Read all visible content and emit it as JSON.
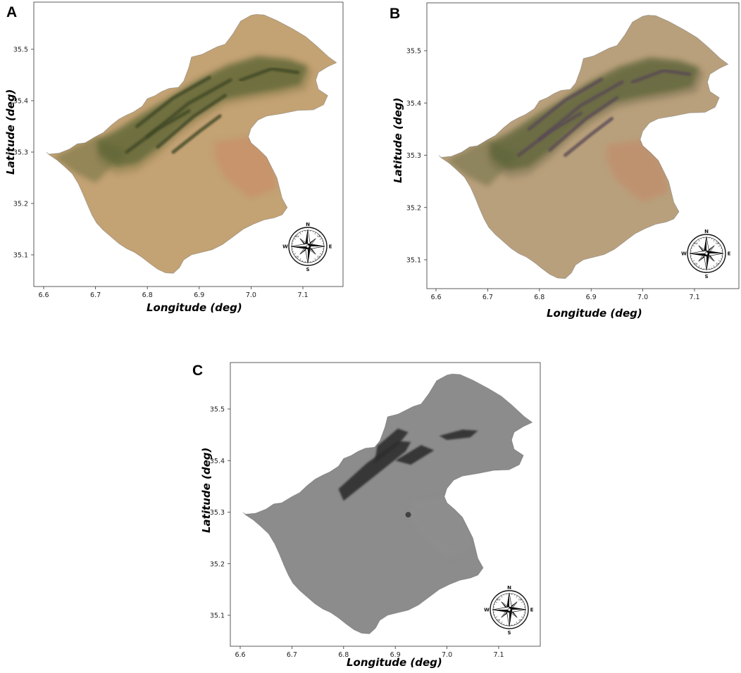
{
  "figure": {
    "panels": [
      {
        "id": "A",
        "label": "A",
        "style": "true-color",
        "xlabel": "Longitude (deg)",
        "ylabel": "Latitude (deg)",
        "xticks": [
          "6.6",
          "6.7",
          "6.8",
          "6.9",
          "7.0",
          "7.1"
        ],
        "yticks": [
          "35.1",
          "35.2",
          "35.3",
          "35.4",
          "35.5"
        ],
        "xlim": [
          6.58,
          7.19
        ],
        "ylim": [
          35.04,
          35.58
        ]
      },
      {
        "id": "B",
        "label": "B",
        "style": "enhanced-color",
        "xlabel": "Longitude (deg)",
        "ylabel": "Latitude (deg)",
        "xticks": [
          "6.6",
          "6.7",
          "6.8",
          "6.9",
          "7.0",
          "7.1"
        ],
        "yticks": [
          "35.1",
          "35.2",
          "35.3",
          "35.4",
          "35.5"
        ],
        "xlim": [
          6.58,
          7.19
        ],
        "ylim": [
          35.04,
          35.58
        ]
      },
      {
        "id": "C",
        "label": "C",
        "style": "grayscale",
        "xlabel": "Longitude (deg)",
        "ylabel": "Latitude (deg)",
        "xticks": [
          "6.6",
          "6.7",
          "6.8",
          "6.9",
          "7.0",
          "7.1"
        ],
        "yticks": [
          "35.1",
          "35.2",
          "35.3",
          "35.4",
          "35.5"
        ],
        "xlim": [
          6.58,
          7.19
        ],
        "ylim": [
          35.04,
          35.58
        ]
      }
    ],
    "compass": {
      "north": "N",
      "south": "S",
      "east": "E",
      "west": "W",
      "ne": "NE",
      "nw": "NW",
      "se": "SE",
      "sw": "SW"
    },
    "colors": {
      "A": {
        "base": "#c3a274",
        "mid": "#a99060",
        "veg": "#5b6536",
        "vegDark": "#414a26",
        "orange": "#c8926a"
      },
      "B": {
        "base": "#b9a07c",
        "mid": "#9a8866",
        "veg": "#5c6337",
        "vegDark": "#5a4b55",
        "orange": "#c0906e"
      },
      "C": {
        "base": "#8c8c8c",
        "mid": "#868686",
        "veg": "#5a5a5a",
        "vegDark": "#2f2f2f",
        "orange": "#8e8e8e"
      }
    }
  }
}
